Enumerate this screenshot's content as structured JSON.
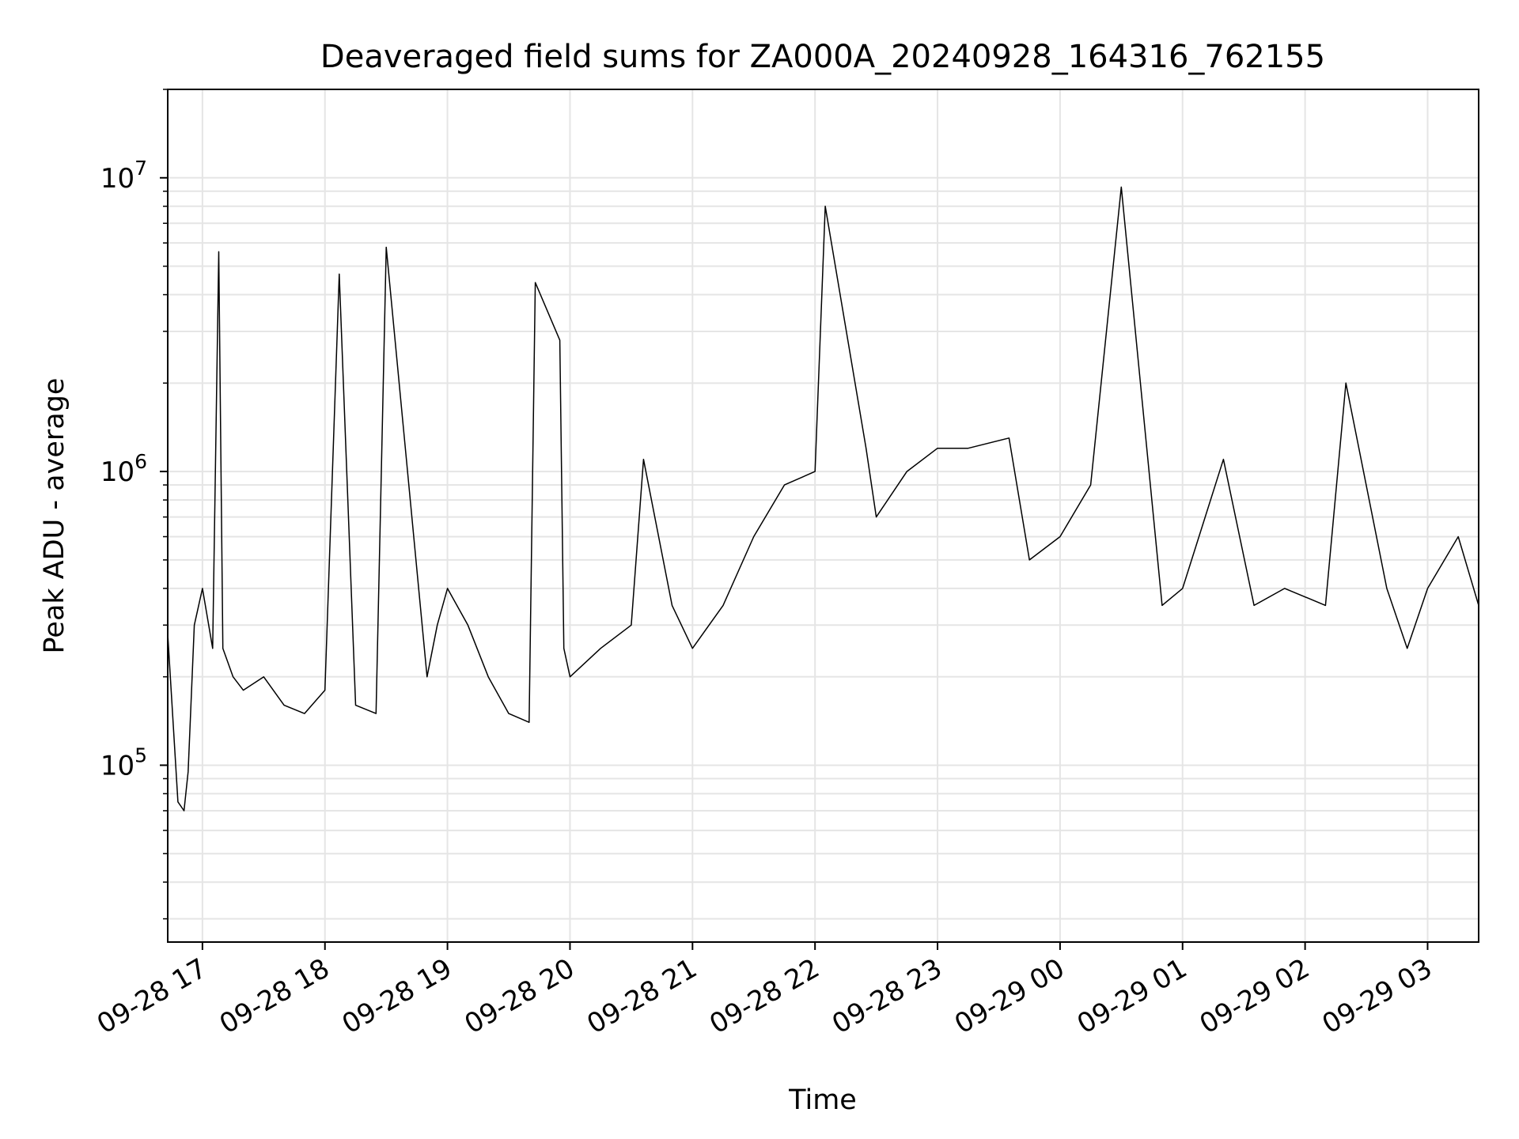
{
  "chart_data": {
    "type": "line",
    "title": "Deaveraged field sums for ZA000A_20240928_164316_762155",
    "xlabel": "Time",
    "ylabel": "Peak ADU - average",
    "yscale": "log",
    "ylim": [
      25000,
      20000000
    ],
    "xlim": [
      "2024-09-28 16:43",
      "2024-09-29 03:25"
    ],
    "grid": true,
    "legend": "none",
    "line_color": "#000000",
    "grid_color": "#e5e5e5",
    "x_ticks": [
      {
        "label": "09-28 17",
        "time": "2024-09-28 17:00"
      },
      {
        "label": "09-28 18",
        "time": "2024-09-28 18:00"
      },
      {
        "label": "09-28 19",
        "time": "2024-09-28 19:00"
      },
      {
        "label": "09-28 20",
        "time": "2024-09-28 20:00"
      },
      {
        "label": "09-28 21",
        "time": "2024-09-28 21:00"
      },
      {
        "label": "09-28 22",
        "time": "2024-09-28 22:00"
      },
      {
        "label": "09-28 23",
        "time": "2024-09-28 23:00"
      },
      {
        "label": "09-29 00",
        "time": "2024-09-29 00:00"
      },
      {
        "label": "09-29 01",
        "time": "2024-09-29 01:00"
      },
      {
        "label": "09-29 02",
        "time": "2024-09-29 02:00"
      },
      {
        "label": "09-29 03",
        "time": "2024-09-29 03:00"
      }
    ],
    "y_ticks": [
      {
        "base": "10",
        "exp": "5",
        "value": 100000
      },
      {
        "base": "10",
        "exp": "6",
        "value": 1000000
      },
      {
        "base": "10",
        "exp": "7",
        "value": 10000000
      }
    ],
    "series": [
      {
        "x": [
          "2024-09-28 16:43",
          "2024-09-28 16:48",
          "2024-09-28 16:51",
          "2024-09-28 16:53",
          "2024-09-28 16:56",
          "2024-09-28 17:00",
          "2024-09-28 17:05",
          "2024-09-28 17:08",
          "2024-09-28 17:10",
          "2024-09-28 17:15",
          "2024-09-28 17:20",
          "2024-09-28 17:30",
          "2024-09-28 17:40",
          "2024-09-28 17:50",
          "2024-09-28 18:00",
          "2024-09-28 18:07",
          "2024-09-28 18:15",
          "2024-09-28 18:25",
          "2024-09-28 18:30",
          "2024-09-28 18:50",
          "2024-09-28 18:55",
          "2024-09-28 19:00",
          "2024-09-28 19:10",
          "2024-09-28 19:20",
          "2024-09-28 19:30",
          "2024-09-28 19:40",
          "2024-09-28 19:43",
          "2024-09-28 19:55",
          "2024-09-28 19:57",
          "2024-09-28 20:00",
          "2024-09-28 20:15",
          "2024-09-28 20:30",
          "2024-09-28 20:36",
          "2024-09-28 20:50",
          "2024-09-28 21:00",
          "2024-09-28 21:15",
          "2024-09-28 21:30",
          "2024-09-28 21:45",
          "2024-09-28 22:00",
          "2024-09-28 22:05",
          "2024-09-28 22:25",
          "2024-09-28 22:30",
          "2024-09-28 22:45",
          "2024-09-28 23:00",
          "2024-09-28 23:15",
          "2024-09-28 23:35",
          "2024-09-28 23:45",
          "2024-09-29 00:00",
          "2024-09-29 00:15",
          "2024-09-29 00:30",
          "2024-09-29 00:50",
          "2024-09-29 01:00",
          "2024-09-29 01:20",
          "2024-09-29 01:35",
          "2024-09-29 01:50",
          "2024-09-29 02:10",
          "2024-09-29 02:20",
          "2024-09-29 02:40",
          "2024-09-29 02:50",
          "2024-09-29 03:00",
          "2024-09-29 03:15",
          "2024-09-29 03:25"
        ],
        "y": [
          280000,
          75000,
          70000,
          95000,
          300000,
          400000,
          250000,
          5600000,
          250000,
          200000,
          180000,
          200000,
          160000,
          150000,
          180000,
          4700000,
          160000,
          150000,
          5800000,
          200000,
          300000,
          400000,
          300000,
          200000,
          150000,
          140000,
          4400000,
          2800000,
          250000,
          200000,
          250000,
          300000,
          1100000,
          350000,
          250000,
          350000,
          600000,
          900000,
          1000000,
          8000000,
          1200000,
          700000,
          1000000,
          1200000,
          1200000,
          1300000,
          500000,
          600000,
          900000,
          9300000,
          350000,
          400000,
          1100000,
          350000,
          400000,
          350000,
          2000000,
          400000,
          250000,
          400000,
          600000,
          350000
        ]
      }
    ]
  }
}
